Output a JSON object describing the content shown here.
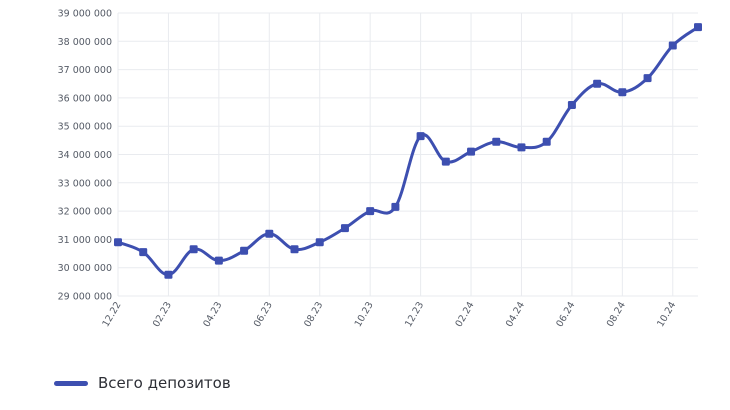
{
  "colors": {
    "line": "#3d4fb0",
    "grid": "#e9ebef",
    "tick": "#555b66"
  },
  "chart_data": {
    "type": "line",
    "title": "",
    "xlabel": "",
    "ylabel": "",
    "ylim": [
      29000000,
      39000000
    ],
    "y_ticks": [
      29000000,
      30000000,
      31000000,
      32000000,
      33000000,
      34000000,
      35000000,
      36000000,
      37000000,
      38000000,
      39000000
    ],
    "y_tick_labels": [
      "29 000 000",
      "30 000 000",
      "31 000 000",
      "32 000 000",
      "33 000 000",
      "34 000 000",
      "35 000 000",
      "36 000 000",
      "37 000 000",
      "38 000 000",
      "39 000 000"
    ],
    "x_tick_labels": [
      "12.22",
      "02.23",
      "04.23",
      "06.23",
      "08.23",
      "10.23",
      "12.23",
      "02.24",
      "04.24",
      "06.24",
      "08.24",
      "10.24"
    ],
    "x_tick_indices": [
      0,
      2,
      4,
      6,
      8,
      10,
      12,
      14,
      16,
      18,
      20,
      22
    ],
    "grid": true,
    "legend": "bottom-left",
    "series": [
      {
        "name": "Всего депозитов",
        "values": [
          30900000,
          30550000,
          29750000,
          30650000,
          30250000,
          30600000,
          31200000,
          30650000,
          30900000,
          31400000,
          32000000,
          32150000,
          34650000,
          33750000,
          34100000,
          34450000,
          34250000,
          34450000,
          35750000,
          36500000,
          36200000,
          36700000,
          37850000,
          38500000
        ]
      }
    ]
  }
}
